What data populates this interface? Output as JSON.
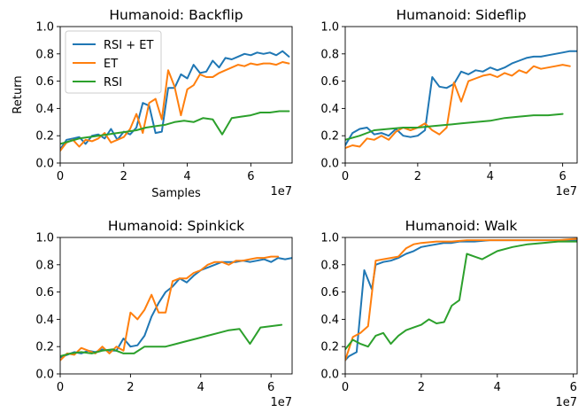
{
  "colors": {
    "rsi_et": "#1f77b4",
    "et": "#ff7f0e",
    "rsi": "#2ca02c"
  },
  "chart_data": [
    {
      "type": "line",
      "title": "Humanoid: Backflip",
      "xlabel": "Samples",
      "ylabel": "Return",
      "x_exponent": "1e7",
      "xlim": [
        0,
        7.3
      ],
      "ylim": [
        0,
        1.0
      ],
      "xticks": [
        "0",
        "2",
        "4",
        "6"
      ],
      "yticks": [
        "0.0",
        "0.2",
        "0.4",
        "0.6",
        "0.8",
        "1.0"
      ],
      "legend": {
        "placement": "upper-left",
        "entries": [
          "RSI + ET",
          "ET",
          "RSI"
        ]
      },
      "series": [
        {
          "name": "RSI + ET",
          "x": [
            0,
            0.2,
            0.4,
            0.6,
            0.8,
            1.0,
            1.2,
            1.4,
            1.6,
            1.8,
            2.0,
            2.2,
            2.4,
            2.6,
            2.8,
            3.0,
            3.2,
            3.4,
            3.6,
            3.8,
            4.0,
            4.2,
            4.4,
            4.6,
            4.8,
            5.0,
            5.2,
            5.4,
            5.6,
            5.8,
            6.0,
            6.2,
            6.4,
            6.6,
            6.8,
            7.0,
            7.2
          ],
          "y": [
            0.1,
            0.17,
            0.18,
            0.19,
            0.14,
            0.2,
            0.21,
            0.18,
            0.25,
            0.17,
            0.23,
            0.21,
            0.26,
            0.44,
            0.42,
            0.22,
            0.23,
            0.55,
            0.55,
            0.65,
            0.62,
            0.72,
            0.66,
            0.67,
            0.75,
            0.7,
            0.77,
            0.76,
            0.78,
            0.8,
            0.79,
            0.81,
            0.8,
            0.81,
            0.79,
            0.82,
            0.78
          ]
        },
        {
          "name": "ET",
          "x": [
            0,
            0.2,
            0.4,
            0.6,
            0.8,
            1.0,
            1.2,
            1.4,
            1.6,
            1.8,
            2.0,
            2.2,
            2.4,
            2.6,
            2.8,
            3.0,
            3.2,
            3.4,
            3.6,
            3.8,
            4.0,
            4.2,
            4.4,
            4.6,
            4.8,
            5.0,
            5.2,
            5.4,
            5.6,
            5.8,
            6.0,
            6.2,
            6.4,
            6.6,
            6.8,
            7.0,
            7.2
          ],
          "y": [
            0.09,
            0.15,
            0.17,
            0.12,
            0.17,
            0.16,
            0.18,
            0.22,
            0.15,
            0.17,
            0.19,
            0.25,
            0.36,
            0.22,
            0.44,
            0.47,
            0.32,
            0.68,
            0.56,
            0.35,
            0.54,
            0.57,
            0.65,
            0.63,
            0.63,
            0.66,
            0.68,
            0.7,
            0.72,
            0.71,
            0.73,
            0.72,
            0.73,
            0.73,
            0.72,
            0.74,
            0.73
          ]
        },
        {
          "name": "RSI",
          "x": [
            0,
            0.3,
            0.6,
            0.9,
            1.2,
            1.5,
            1.8,
            2.1,
            2.4,
            2.7,
            3.0,
            3.3,
            3.6,
            3.9,
            4.2,
            4.5,
            4.8,
            5.1,
            5.4,
            5.7,
            6.0,
            6.3,
            6.6,
            6.9,
            7.2
          ],
          "y": [
            0.14,
            0.16,
            0.18,
            0.19,
            0.2,
            0.21,
            0.22,
            0.23,
            0.24,
            0.26,
            0.27,
            0.28,
            0.3,
            0.31,
            0.3,
            0.33,
            0.32,
            0.21,
            0.33,
            0.34,
            0.35,
            0.37,
            0.37,
            0.38,
            0.38
          ]
        }
      ]
    },
    {
      "type": "line",
      "title": "Humanoid: Sideflip",
      "x_exponent": "1e7",
      "xlim": [
        0,
        6.4
      ],
      "ylim": [
        0,
        1.0
      ],
      "xticks": [
        "0",
        "2",
        "4",
        "6"
      ],
      "yticks": [
        "0.0",
        "0.2",
        "0.4",
        "0.6",
        "0.8",
        "1.0"
      ],
      "series": [
        {
          "name": "RSI + ET",
          "x": [
            0,
            0.2,
            0.4,
            0.6,
            0.8,
            1.0,
            1.2,
            1.4,
            1.6,
            1.8,
            2.0,
            2.2,
            2.4,
            2.6,
            2.8,
            3.0,
            3.2,
            3.4,
            3.6,
            3.8,
            4.0,
            4.2,
            4.4,
            4.6,
            4.8,
            5.0,
            5.2,
            5.4,
            5.6,
            5.8,
            6.0,
            6.2,
            6.4
          ],
          "y": [
            0.13,
            0.22,
            0.25,
            0.26,
            0.21,
            0.22,
            0.2,
            0.25,
            0.2,
            0.19,
            0.2,
            0.24,
            0.63,
            0.56,
            0.55,
            0.58,
            0.67,
            0.65,
            0.68,
            0.67,
            0.7,
            0.68,
            0.7,
            0.73,
            0.75,
            0.77,
            0.78,
            0.78,
            0.79,
            0.8,
            0.81,
            0.82,
            0.82
          ]
        },
        {
          "name": "ET",
          "x": [
            0,
            0.2,
            0.4,
            0.6,
            0.8,
            1.0,
            1.2,
            1.4,
            1.6,
            1.8,
            2.0,
            2.2,
            2.4,
            2.6,
            2.8,
            3.0,
            3.2,
            3.4,
            3.6,
            3.8,
            4.0,
            4.2,
            4.4,
            4.6,
            4.8,
            5.0,
            5.2,
            5.4,
            5.6,
            5.8,
            6.0,
            6.2
          ],
          "y": [
            0.11,
            0.13,
            0.12,
            0.18,
            0.17,
            0.2,
            0.17,
            0.23,
            0.26,
            0.24,
            0.26,
            0.29,
            0.24,
            0.21,
            0.26,
            0.59,
            0.45,
            0.6,
            0.62,
            0.64,
            0.65,
            0.63,
            0.66,
            0.64,
            0.68,
            0.66,
            0.71,
            0.69,
            0.7,
            0.71,
            0.72,
            0.71
          ]
        },
        {
          "name": "RSI",
          "x": [
            0,
            0.4,
            0.8,
            1.2,
            1.6,
            2.0,
            2.4,
            2.8,
            3.2,
            3.6,
            4.0,
            4.4,
            4.8,
            5.2,
            5.6,
            6.0
          ],
          "y": [
            0.17,
            0.2,
            0.24,
            0.25,
            0.26,
            0.26,
            0.27,
            0.28,
            0.29,
            0.3,
            0.31,
            0.33,
            0.34,
            0.35,
            0.35,
            0.36
          ]
        }
      ]
    },
    {
      "type": "line",
      "title": "Humanoid: Spinkick",
      "x_exponent": "1e7",
      "xlim": [
        0,
        6.6
      ],
      "ylim": [
        0,
        1.0
      ],
      "xticks": [
        "0",
        "2",
        "4",
        "6"
      ],
      "yticks": [
        "0.0",
        "0.2",
        "0.4",
        "0.6",
        "0.8",
        "1.0"
      ],
      "series": [
        {
          "name": "RSI + ET",
          "x": [
            0,
            0.2,
            0.4,
            0.6,
            0.8,
            1.0,
            1.2,
            1.4,
            1.6,
            1.8,
            2.0,
            2.2,
            2.4,
            2.6,
            2.8,
            3.0,
            3.2,
            3.4,
            3.6,
            3.8,
            4.0,
            4.2,
            4.4,
            4.6,
            4.8,
            5.0,
            5.2,
            5.4,
            5.6,
            5.8,
            6.0,
            6.2,
            6.4,
            6.6
          ],
          "y": [
            0.12,
            0.14,
            0.16,
            0.15,
            0.17,
            0.16,
            0.18,
            0.17,
            0.17,
            0.26,
            0.2,
            0.21,
            0.28,
            0.42,
            0.52,
            0.6,
            0.64,
            0.7,
            0.67,
            0.72,
            0.76,
            0.78,
            0.8,
            0.82,
            0.82,
            0.82,
            0.83,
            0.82,
            0.83,
            0.84,
            0.82,
            0.85,
            0.84,
            0.85
          ]
        },
        {
          "name": "ET",
          "x": [
            0,
            0.2,
            0.4,
            0.6,
            0.8,
            1.0,
            1.2,
            1.4,
            1.6,
            1.8,
            2.0,
            2.2,
            2.4,
            2.6,
            2.8,
            3.0,
            3.2,
            3.4,
            3.6,
            3.8,
            4.0,
            4.2,
            4.4,
            4.6,
            4.8,
            5.0,
            5.2,
            5.4,
            5.6,
            5.8,
            6.0,
            6.2
          ],
          "y": [
            0.1,
            0.15,
            0.14,
            0.19,
            0.17,
            0.15,
            0.2,
            0.15,
            0.2,
            0.17,
            0.45,
            0.4,
            0.47,
            0.58,
            0.45,
            0.45,
            0.68,
            0.7,
            0.7,
            0.74,
            0.76,
            0.8,
            0.82,
            0.82,
            0.8,
            0.83,
            0.83,
            0.84,
            0.85,
            0.85,
            0.86,
            0.86
          ]
        },
        {
          "name": "RSI",
          "x": [
            0,
            0.3,
            0.6,
            0.9,
            1.2,
            1.5,
            1.8,
            2.1,
            2.4,
            2.7,
            3.0,
            3.3,
            3.6,
            3.9,
            4.2,
            4.5,
            4.8,
            5.1,
            5.4,
            5.7,
            6.0,
            6.3
          ],
          "y": [
            0.13,
            0.15,
            0.16,
            0.15,
            0.17,
            0.18,
            0.15,
            0.15,
            0.2,
            0.2,
            0.2,
            0.22,
            0.24,
            0.26,
            0.28,
            0.3,
            0.32,
            0.33,
            0.22,
            0.34,
            0.35,
            0.36
          ]
        }
      ]
    },
    {
      "type": "line",
      "title": "Humanoid: Walk",
      "x_exponent": "1e7",
      "xlim": [
        0,
        6.1
      ],
      "ylim": [
        0,
        1.0
      ],
      "xticks": [
        "0",
        "2",
        "4",
        "6"
      ],
      "yticks": [
        "0.0",
        "0.2",
        "0.4",
        "0.6",
        "0.8",
        "1.0"
      ],
      "series": [
        {
          "name": "RSI + ET",
          "x": [
            0,
            0.1,
            0.3,
            0.5,
            0.7,
            0.8,
            1.0,
            1.2,
            1.4,
            1.6,
            1.8,
            2.0,
            2.2,
            2.4,
            2.6,
            2.8,
            3.0,
            3.4,
            3.8,
            4.2,
            4.6,
            5.0,
            5.4,
            5.8,
            6.1
          ],
          "y": [
            0.1,
            0.13,
            0.16,
            0.76,
            0.62,
            0.8,
            0.82,
            0.83,
            0.85,
            0.88,
            0.9,
            0.93,
            0.94,
            0.95,
            0.96,
            0.96,
            0.97,
            0.97,
            0.98,
            0.98,
            0.98,
            0.98,
            0.98,
            0.98,
            0.98
          ]
        },
        {
          "name": "ET",
          "x": [
            0,
            0.2,
            0.4,
            0.6,
            0.8,
            1.0,
            1.2,
            1.4,
            1.6,
            1.8,
            2.0,
            2.4,
            2.8,
            3.2,
            3.6,
            4.0,
            4.4,
            4.8,
            5.2,
            5.6,
            6.1
          ],
          "y": [
            0.1,
            0.27,
            0.3,
            0.35,
            0.83,
            0.84,
            0.85,
            0.86,
            0.92,
            0.95,
            0.96,
            0.97,
            0.97,
            0.98,
            0.98,
            0.98,
            0.98,
            0.98,
            0.98,
            0.98,
            0.99
          ]
        },
        {
          "name": "RSI",
          "x": [
            0,
            0.2,
            0.4,
            0.6,
            0.8,
            1.0,
            1.2,
            1.4,
            1.6,
            1.8,
            2.0,
            2.2,
            2.4,
            2.6,
            2.8,
            3.0,
            3.2,
            3.4,
            3.6,
            3.8,
            4.0,
            4.4,
            4.8,
            5.2,
            5.6,
            6.1
          ],
          "y": [
            0.18,
            0.25,
            0.22,
            0.2,
            0.28,
            0.3,
            0.22,
            0.28,
            0.32,
            0.34,
            0.36,
            0.4,
            0.37,
            0.38,
            0.5,
            0.54,
            0.88,
            0.86,
            0.84,
            0.87,
            0.9,
            0.93,
            0.95,
            0.96,
            0.97,
            0.97
          ]
        }
      ]
    }
  ]
}
